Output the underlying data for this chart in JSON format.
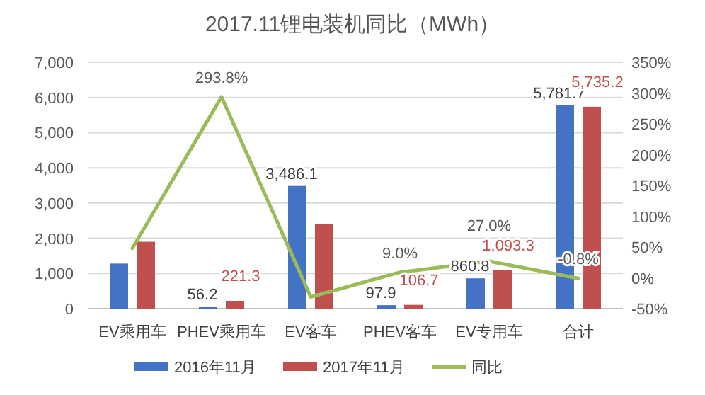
{
  "chart_data": {
    "type": "bar",
    "title": "2017.11锂电装机同比（MWh）",
    "categories": [
      "EV乘用车",
      "PHEV乘用车",
      "EV客车",
      "PHEV客车",
      "EV专用车",
      "合计"
    ],
    "series": [
      {
        "name": "2016年11月",
        "color": "#4472c4",
        "values": [
          1280,
          56.2,
          3486.1,
          97.9,
          860.8,
          5781.7
        ],
        "value_labels": [
          null,
          "56.2",
          "3,486.1",
          "97.9",
          "860.8",
          "5,781.7"
        ]
      },
      {
        "name": "2017年11月",
        "color": "#c0504d",
        "values": [
          1900,
          221.3,
          2400,
          106.7,
          1093.3,
          5735.2
        ],
        "value_labels": [
          null,
          "221.3",
          null,
          "106.7",
          "1,093.3",
          "5,735.2"
        ]
      },
      {
        "name": "同比",
        "color": "#9bbb59",
        "type": "line",
        "axis": "y2",
        "values": [
          48,
          293.8,
          -31,
          9.0,
          27.0,
          -0.8
        ],
        "value_labels": [
          null,
          "293.8%",
          null,
          "9.0%",
          "27.0%",
          "-0.8%"
        ]
      }
    ],
    "ylim": [
      0,
      7000
    ],
    "yticks": [
      0,
      {
        "value": 1000,
        "label": "1,000"
      },
      {
        "value": 2000,
        "label": "2,000"
      },
      {
        "value": 3000,
        "label": "3,000"
      },
      {
        "value": 4000,
        "label": "4,000"
      },
      {
        "value": 5000,
        "label": "5,000"
      },
      {
        "value": 6000,
        "label": "6,000"
      },
      {
        "value": 7000,
        "label": "7,000"
      }
    ],
    "y2lim": [
      -50,
      350
    ],
    "y2ticks": [
      {
        "value": -50,
        "label": "-50%"
      },
      {
        "value": 0,
        "label": "0%"
      },
      {
        "value": 50,
        "label": "50%"
      },
      {
        "value": 100,
        "label": "100%"
      },
      {
        "value": 150,
        "label": "150%"
      },
      {
        "value": 200,
        "label": "200%"
      },
      {
        "value": 250,
        "label": "250%"
      },
      {
        "value": 300,
        "label": "300%"
      },
      {
        "value": 350,
        "label": "350%"
      }
    ],
    "grid": "y",
    "legend": "bottom",
    "marker": "none",
    "line_style": "solid"
  }
}
